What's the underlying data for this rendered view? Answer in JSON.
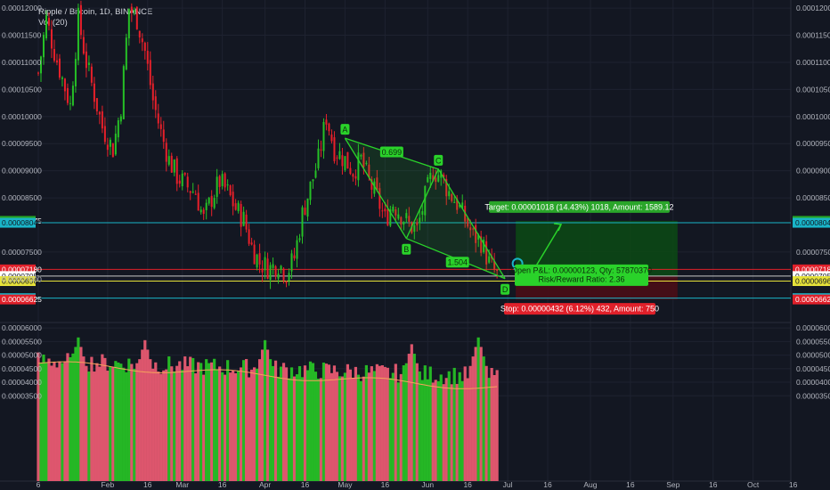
{
  "header": {
    "symbol_line": "Ripple / Bitcoin, 1D, BINANCE",
    "volume_label": "Vol (20)"
  },
  "colors": {
    "up": "#26c026",
    "down": "#e8202a",
    "grid": "#1e2230",
    "background": "#131722",
    "target_zone": "#0c4a14",
    "stop_zone": "#4a0d16",
    "pattern": "#2ad22a",
    "cyan_line": "#19b5c8",
    "red_line": "#e0202a",
    "yellow_line": "#e6e23a"
  },
  "chart_data": [
    {
      "type": "candlestick",
      "title": "Ripple / Bitcoin, 1D, BINANCE",
      "ylim": [
        6.2e-05,
        0.0001215
      ],
      "y_ticks": [
        "0.00012000",
        "0.00011500",
        "0.00011000",
        "0.00010500",
        "0.00010000",
        "0.00009500",
        "0.00009000",
        "0.00008500",
        "0.00007500",
        "0.00007000"
      ],
      "x_ticks": [
        "6",
        "Feb",
        "16",
        "Mar",
        "16",
        "Apr",
        "16",
        "May",
        "16",
        "Jun",
        "16",
        "Jul",
        "16",
        "Aug",
        "16",
        "Sep",
        "16",
        "Oct",
        "16"
      ],
      "series": [
        {
          "name": "close_path_estimate",
          "points": [
            [
              "Jan 6",
              0.000108
            ],
            [
              "Jan 9",
              0.000118
            ],
            [
              "Jan 12",
              0.000112
            ],
            [
              "Jan 15",
              0.000107
            ],
            [
              "Jan 18",
              0.000102
            ],
            [
              "Jan 21",
              0.000118
            ],
            [
              "Jan 24",
              0.00011
            ],
            [
              "Jan 27",
              0.000104
            ],
            [
              "Jan 30",
              9.8e-05
            ],
            [
              "Feb 3",
              9.4e-05
            ],
            [
              "Feb 6",
              0.000102
            ],
            [
              "Feb 9",
              0.00012
            ],
            [
              "Feb 12",
              0.000118
            ],
            [
              "Feb 15",
              0.000112
            ],
            [
              "Feb 18",
              0.000103
            ],
            [
              "Feb 21",
              9.7e-05
            ],
            [
              "Feb 24",
              9.2e-05
            ],
            [
              "Feb 27",
              8.9e-05
            ],
            [
              "Mar 3",
              8.7e-05
            ],
            [
              "Mar 6",
              8.6e-05
            ],
            [
              "Mar 9",
              8.1e-05
            ],
            [
              "Mar 12",
              8.5e-05
            ],
            [
              "Mar 15",
              8.8e-05
            ],
            [
              "Mar 18",
              8.6e-05
            ],
            [
              "Mar 21",
              8.3e-05
            ],
            [
              "Mar 24",
              8.1e-05
            ],
            [
              "Mar 27",
              7.6e-05
            ],
            [
              "Mar 30",
              7.3e-05
            ],
            [
              "Apr 3",
              7.2e-05
            ],
            [
              "Apr 6",
              7.3e-05
            ],
            [
              "Apr 9",
              7.1e-05
            ],
            [
              "Apr 12",
              7.4e-05
            ],
            [
              "Apr 15",
              8.2e-05
            ],
            [
              "Apr 18",
              8.7e-05
            ],
            [
              "Apr 21",
              9.2e-05
            ],
            [
              "Apr 24",
              0.0001
            ],
            [
              "Apr 27",
              9.4e-05
            ],
            [
              "May 1",
              9.2e-05
            ],
            [
              "May 4",
              9e-05
            ],
            [
              "May 7",
              9.2e-05
            ],
            [
              "May 10",
              8.8e-05
            ],
            [
              "May 13",
              8.5e-05
            ],
            [
              "May 16",
              8.1e-05
            ],
            [
              "May 19",
              8.4e-05
            ],
            [
              "May 22",
              8.2e-05
            ],
            [
              "May 25",
              8e-05
            ],
            [
              "May 28",
              7.9e-05
            ],
            [
              "May 31",
              8.5e-05
            ],
            [
              "Jun 3",
              9e-05
            ],
            [
              "Jun 6",
              8.9e-05
            ],
            [
              "Jun 9",
              8.6e-05
            ],
            [
              "Jun 12",
              8.4e-05
            ],
            [
              "Jun 15",
              8.1e-05
            ],
            [
              "Jun 18",
              7.8e-05
            ],
            [
              "Jun 21",
              7.7e-05
            ],
            [
              "Jun 24",
              7.3e-05
            ],
            [
              "Jun 27",
              7.06e-05
            ]
          ]
        }
      ],
      "price_labels": [
        {
          "value": 8.075e-05,
          "text": "0.00008075",
          "color": "#26a626"
        },
        {
          "value": 8.04e-05,
          "text": "0.00008040",
          "color": "#19b5c8"
        },
        {
          "value": 7.18e-05,
          "text": "0.00007180",
          "color": "#e0202a"
        },
        {
          "value": 7.057e-05,
          "text": "0.00007057",
          "color": "#ffffff"
        },
        {
          "value": 6.964e-05,
          "text": "0.00006964",
          "color": "#e6e23a"
        },
        {
          "value": 6.649e-05,
          "text": "0.00006649",
          "color": "#19b5c8"
        },
        {
          "value": 6.625e-05,
          "text": "0.00006625",
          "color": "#e0202a"
        }
      ],
      "pattern": {
        "points": [
          {
            "label": "A",
            "date": "May 1",
            "value": 9.6e-05
          },
          {
            "label": "B",
            "date": "May 24",
            "value": 7.75e-05
          },
          {
            "label": "C",
            "date": "Jun 5",
            "value": 9.03e-05
          },
          {
            "label": "D",
            "date": "Jun 30",
            "value": 7.01e-05
          }
        ],
        "ratio_ac": "0.699",
        "ratio_bd": "1.504"
      },
      "position": {
        "entry": 7.057e-05,
        "target": 8.075e-05,
        "stop": 6.625e-05,
        "target_text": "Target: 0.00001018 (14.43%) 1018, Amount: 1589.12",
        "pnl_text": "Open P&L: 0.00000123, Qty: 57870370",
        "rr_text": "Risk/Reward Ratio: 2.36",
        "stop_text": "Stop: 0.00000432 (6.12%) 432, Amount: 750"
      }
    },
    {
      "type": "volume",
      "title": "Vol (20)",
      "ylim": [
        3.6e-06,
        6.2e-05
      ],
      "y_ticks": [
        "0.00006000",
        "0.00005500",
        "0.00005000",
        "0.00004500",
        "0.00004000",
        "0.00003500"
      ]
    }
  ]
}
